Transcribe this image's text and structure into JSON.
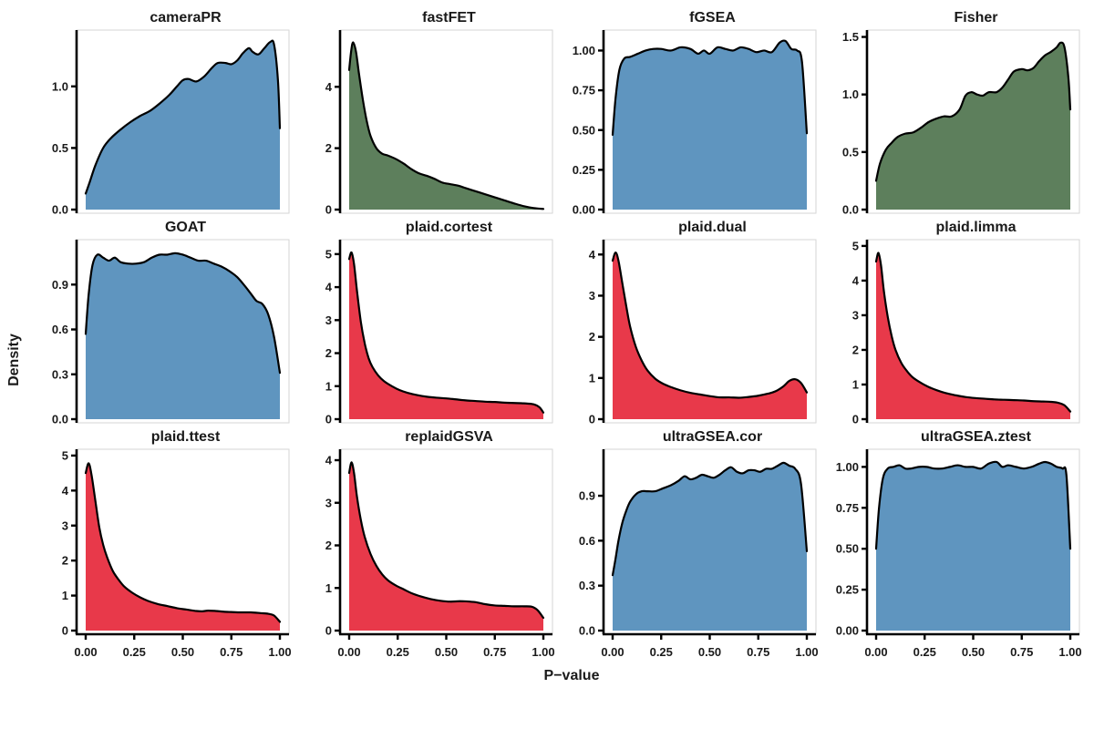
{
  "chart_data": {
    "type": "area",
    "subtype": "faceted-density-grid",
    "xlabel": "P−value",
    "ylabel": "Density",
    "x_ticks": [
      "0.00",
      "0.25",
      "0.50",
      "0.75",
      "1.00"
    ],
    "xlim": [
      0,
      1
    ],
    "grid": "off",
    "palette": {
      "blue": "#5F95BF",
      "green": "#5D7F5C",
      "red": "#E8394A"
    },
    "stroke_color": "#000000",
    "border_color": "#D6D6D6",
    "panels": [
      {
        "title": "cameraPR",
        "color": "blue",
        "ymax": 1.42,
        "y_ticks": [
          "0.0",
          "0.5",
          "1.0"
        ],
        "x": [
          0,
          0.02,
          0.05,
          0.09,
          0.13,
          0.18,
          0.23,
          0.28,
          0.33,
          0.38,
          0.43,
          0.47,
          0.5,
          0.53,
          0.57,
          0.61,
          0.65,
          0.68,
          0.72,
          0.75,
          0.78,
          0.81,
          0.84,
          0.86,
          0.89,
          0.92,
          0.95,
          0.97,
          0.99,
          1.0
        ],
        "y": [
          0.13,
          0.22,
          0.36,
          0.5,
          0.58,
          0.65,
          0.71,
          0.76,
          0.8,
          0.86,
          0.93,
          1.0,
          1.05,
          1.06,
          1.04,
          1.08,
          1.15,
          1.19,
          1.19,
          1.18,
          1.21,
          1.27,
          1.31,
          1.28,
          1.26,
          1.31,
          1.36,
          1.34,
          1.05,
          0.66
        ]
      },
      {
        "title": "fastFET",
        "color": "green",
        "ymax": 5.7,
        "y_ticks": [
          "0",
          "2",
          "4"
        ],
        "x": [
          0,
          0.01,
          0.02,
          0.035,
          0.05,
          0.07,
          0.09,
          0.11,
          0.14,
          0.17,
          0.2,
          0.24,
          0.28,
          0.32,
          0.36,
          0.4,
          0.44,
          0.48,
          0.52,
          0.56,
          0.6,
          0.65,
          0.7,
          0.75,
          0.8,
          0.85,
          0.9,
          0.95,
          1.0
        ],
        "y": [
          4.55,
          5.15,
          5.45,
          5.15,
          4.45,
          3.6,
          2.9,
          2.4,
          2.0,
          1.82,
          1.76,
          1.65,
          1.5,
          1.32,
          1.18,
          1.1,
          1.0,
          0.88,
          0.83,
          0.78,
          0.7,
          0.6,
          0.5,
          0.4,
          0.3,
          0.2,
          0.11,
          0.05,
          0.02
        ]
      },
      {
        "title": "fGSEA",
        "color": "blue",
        "ymax": 1.1,
        "y_ticks": [
          "0.00",
          "0.25",
          "0.50",
          "0.75",
          "1.00"
        ],
        "x": [
          0,
          0.015,
          0.035,
          0.06,
          0.09,
          0.13,
          0.17,
          0.21,
          0.25,
          0.3,
          0.35,
          0.4,
          0.44,
          0.47,
          0.5,
          0.54,
          0.58,
          0.62,
          0.66,
          0.7,
          0.74,
          0.78,
          0.82,
          0.86,
          0.89,
          0.92,
          0.95,
          0.975,
          1.0
        ],
        "y": [
          0.47,
          0.7,
          0.88,
          0.95,
          0.96,
          0.98,
          1.0,
          1.01,
          1.01,
          1.0,
          1.02,
          1.01,
          0.98,
          1.0,
          0.98,
          1.02,
          1.01,
          1.0,
          1.02,
          1.01,
          0.99,
          1.0,
          0.99,
          1.05,
          1.06,
          1.01,
          1.0,
          0.93,
          0.48
        ]
      },
      {
        "title": "Fisher",
        "color": "green",
        "ymax": 1.52,
        "y_ticks": [
          "0.0",
          "0.5",
          "1.0",
          "1.5"
        ],
        "x": [
          0,
          0.02,
          0.05,
          0.08,
          0.11,
          0.15,
          0.19,
          0.23,
          0.27,
          0.31,
          0.35,
          0.39,
          0.43,
          0.46,
          0.49,
          0.52,
          0.55,
          0.58,
          0.62,
          0.65,
          0.68,
          0.71,
          0.75,
          0.78,
          0.81,
          0.84,
          0.87,
          0.9,
          0.93,
          0.95,
          0.97,
          0.99,
          1.0
        ],
        "y": [
          0.25,
          0.4,
          0.52,
          0.58,
          0.63,
          0.66,
          0.67,
          0.71,
          0.76,
          0.79,
          0.81,
          0.81,
          0.87,
          0.99,
          1.02,
          1.0,
          0.99,
          1.02,
          1.02,
          1.06,
          1.13,
          1.2,
          1.22,
          1.21,
          1.23,
          1.29,
          1.34,
          1.37,
          1.41,
          1.45,
          1.41,
          1.15,
          0.87
        ]
      },
      {
        "title": "GOAT",
        "color": "blue",
        "ymax": 1.17,
        "y_ticks": [
          "0.0",
          "0.3",
          "0.6",
          "0.9"
        ],
        "x": [
          0,
          0.015,
          0.035,
          0.06,
          0.09,
          0.12,
          0.15,
          0.18,
          0.22,
          0.26,
          0.3,
          0.34,
          0.38,
          0.42,
          0.46,
          0.5,
          0.54,
          0.58,
          0.62,
          0.66,
          0.7,
          0.74,
          0.78,
          0.82,
          0.85,
          0.88,
          0.91,
          0.94,
          0.97,
          1.0
        ],
        "y": [
          0.57,
          0.83,
          1.03,
          1.1,
          1.08,
          1.06,
          1.08,
          1.05,
          1.04,
          1.04,
          1.05,
          1.08,
          1.1,
          1.1,
          1.11,
          1.1,
          1.08,
          1.06,
          1.06,
          1.04,
          1.02,
          0.99,
          0.95,
          0.89,
          0.84,
          0.79,
          0.77,
          0.7,
          0.55,
          0.31
        ]
      },
      {
        "title": "plaid.cortest",
        "color": "red",
        "ymax": 5.3,
        "y_ticks": [
          "0",
          "1",
          "2",
          "3",
          "4",
          "5"
        ],
        "x": [
          0,
          0.012,
          0.025,
          0.04,
          0.06,
          0.08,
          0.1,
          0.12,
          0.15,
          0.18,
          0.22,
          0.26,
          0.3,
          0.35,
          0.4,
          0.45,
          0.5,
          0.55,
          0.6,
          0.65,
          0.7,
          0.75,
          0.8,
          0.85,
          0.9,
          0.95,
          0.98,
          1.0
        ],
        "y": [
          4.85,
          5.05,
          4.7,
          3.9,
          2.95,
          2.3,
          1.85,
          1.58,
          1.32,
          1.15,
          1.0,
          0.88,
          0.8,
          0.73,
          0.68,
          0.65,
          0.63,
          0.6,
          0.57,
          0.55,
          0.53,
          0.52,
          0.5,
          0.49,
          0.48,
          0.45,
          0.36,
          0.2
        ]
      },
      {
        "title": "plaid.dual",
        "color": "red",
        "ymax": 4.25,
        "y_ticks": [
          "0",
          "1",
          "2",
          "3",
          "4"
        ],
        "x": [
          0,
          0.015,
          0.03,
          0.05,
          0.07,
          0.09,
          0.12,
          0.15,
          0.18,
          0.22,
          0.26,
          0.3,
          0.35,
          0.4,
          0.45,
          0.5,
          0.55,
          0.6,
          0.65,
          0.7,
          0.75,
          0.8,
          0.84,
          0.88,
          0.91,
          0.94,
          0.97,
          1.0
        ],
        "y": [
          3.85,
          4.05,
          3.85,
          3.3,
          2.75,
          2.25,
          1.75,
          1.42,
          1.18,
          0.98,
          0.86,
          0.78,
          0.7,
          0.64,
          0.6,
          0.56,
          0.53,
          0.53,
          0.52,
          0.54,
          0.57,
          0.62,
          0.68,
          0.8,
          0.93,
          0.97,
          0.88,
          0.65
        ]
      },
      {
        "title": "plaid.limma",
        "color": "red",
        "ymax": 5.05,
        "y_ticks": [
          "0",
          "1",
          "2",
          "3",
          "4",
          "5"
        ],
        "x": [
          0,
          0.012,
          0.025,
          0.04,
          0.06,
          0.08,
          0.1,
          0.13,
          0.16,
          0.19,
          0.23,
          0.27,
          0.31,
          0.36,
          0.41,
          0.46,
          0.51,
          0.56,
          0.61,
          0.66,
          0.71,
          0.76,
          0.81,
          0.86,
          0.9,
          0.94,
          0.97,
          1.0
        ],
        "y": [
          4.55,
          4.8,
          4.45,
          3.7,
          2.95,
          2.4,
          2.0,
          1.62,
          1.38,
          1.2,
          1.05,
          0.93,
          0.84,
          0.75,
          0.69,
          0.64,
          0.61,
          0.59,
          0.57,
          0.56,
          0.55,
          0.54,
          0.52,
          0.51,
          0.5,
          0.47,
          0.4,
          0.22
        ]
      },
      {
        "title": "plaid.ttest",
        "color": "red",
        "ymax": 5.05,
        "y_ticks": [
          "0",
          "1",
          "2",
          "3",
          "4",
          "5"
        ],
        "x": [
          0,
          0.015,
          0.03,
          0.05,
          0.07,
          0.09,
          0.11,
          0.14,
          0.17,
          0.2,
          0.24,
          0.28,
          0.32,
          0.37,
          0.42,
          0.47,
          0.52,
          0.57,
          0.6,
          0.63,
          0.67,
          0.71,
          0.75,
          0.8,
          0.85,
          0.9,
          0.94,
          0.97,
          1.0
        ],
        "y": [
          4.5,
          4.78,
          4.45,
          3.7,
          2.95,
          2.45,
          2.1,
          1.7,
          1.45,
          1.25,
          1.08,
          0.95,
          0.85,
          0.76,
          0.7,
          0.64,
          0.6,
          0.56,
          0.55,
          0.57,
          0.56,
          0.54,
          0.53,
          0.52,
          0.52,
          0.5,
          0.48,
          0.43,
          0.25
        ]
      },
      {
        "title": "replaidGSVA",
        "color": "red",
        "ymax": 4.15,
        "y_ticks": [
          "0",
          "1",
          "2",
          "3",
          "4"
        ],
        "x": [
          0,
          0.012,
          0.025,
          0.04,
          0.06,
          0.08,
          0.11,
          0.14,
          0.17,
          0.2,
          0.24,
          0.28,
          0.32,
          0.37,
          0.42,
          0.47,
          0.52,
          0.57,
          0.62,
          0.66,
          0.7,
          0.75,
          0.8,
          0.85,
          0.9,
          0.94,
          0.97,
          1.0
        ],
        "y": [
          3.7,
          3.95,
          3.7,
          3.15,
          2.6,
          2.2,
          1.8,
          1.52,
          1.32,
          1.18,
          1.06,
          0.97,
          0.88,
          0.8,
          0.74,
          0.7,
          0.68,
          0.69,
          0.68,
          0.66,
          0.62,
          0.59,
          0.58,
          0.57,
          0.57,
          0.56,
          0.48,
          0.3
        ]
      },
      {
        "title": "ultraGSEA.cor",
        "color": "blue",
        "ymax": 1.18,
        "y_ticks": [
          "0.0",
          "0.3",
          "0.6",
          "0.9"
        ],
        "x": [
          0,
          0.015,
          0.03,
          0.05,
          0.07,
          0.09,
          0.12,
          0.15,
          0.18,
          0.22,
          0.26,
          0.3,
          0.34,
          0.37,
          0.4,
          0.43,
          0.46,
          0.49,
          0.52,
          0.55,
          0.58,
          0.61,
          0.64,
          0.67,
          0.7,
          0.73,
          0.76,
          0.79,
          0.82,
          0.85,
          0.88,
          0.91,
          0.94,
          0.97,
          1.0
        ],
        "y": [
          0.37,
          0.48,
          0.6,
          0.72,
          0.8,
          0.86,
          0.91,
          0.93,
          0.93,
          0.93,
          0.95,
          0.97,
          1.0,
          1.03,
          1.01,
          1.02,
          1.04,
          1.03,
          1.02,
          1.04,
          1.07,
          1.09,
          1.06,
          1.05,
          1.07,
          1.07,
          1.06,
          1.08,
          1.08,
          1.1,
          1.12,
          1.1,
          1.08,
          0.98,
          0.53
        ]
      },
      {
        "title": "ultraGSEA.ztest",
        "color": "blue",
        "ymax": 1.08,
        "y_ticks": [
          "0.00",
          "0.25",
          "0.50",
          "0.75",
          "1.00"
        ],
        "x": [
          0,
          0.015,
          0.035,
          0.06,
          0.09,
          0.12,
          0.15,
          0.18,
          0.22,
          0.26,
          0.3,
          0.34,
          0.38,
          0.42,
          0.46,
          0.5,
          0.54,
          0.58,
          0.62,
          0.65,
          0.68,
          0.72,
          0.76,
          0.8,
          0.84,
          0.87,
          0.9,
          0.93,
          0.96,
          0.98,
          1.0
        ],
        "y": [
          0.5,
          0.75,
          0.93,
          0.99,
          1.0,
          1.01,
          0.99,
          0.99,
          1.0,
          1.0,
          0.99,
          0.99,
          1.0,
          1.01,
          1.0,
          1.0,
          0.99,
          1.02,
          1.03,
          1.0,
          1.01,
          1.0,
          0.99,
          1.0,
          1.02,
          1.03,
          1.02,
          1.0,
          0.99,
          0.95,
          0.5
        ]
      }
    ]
  }
}
